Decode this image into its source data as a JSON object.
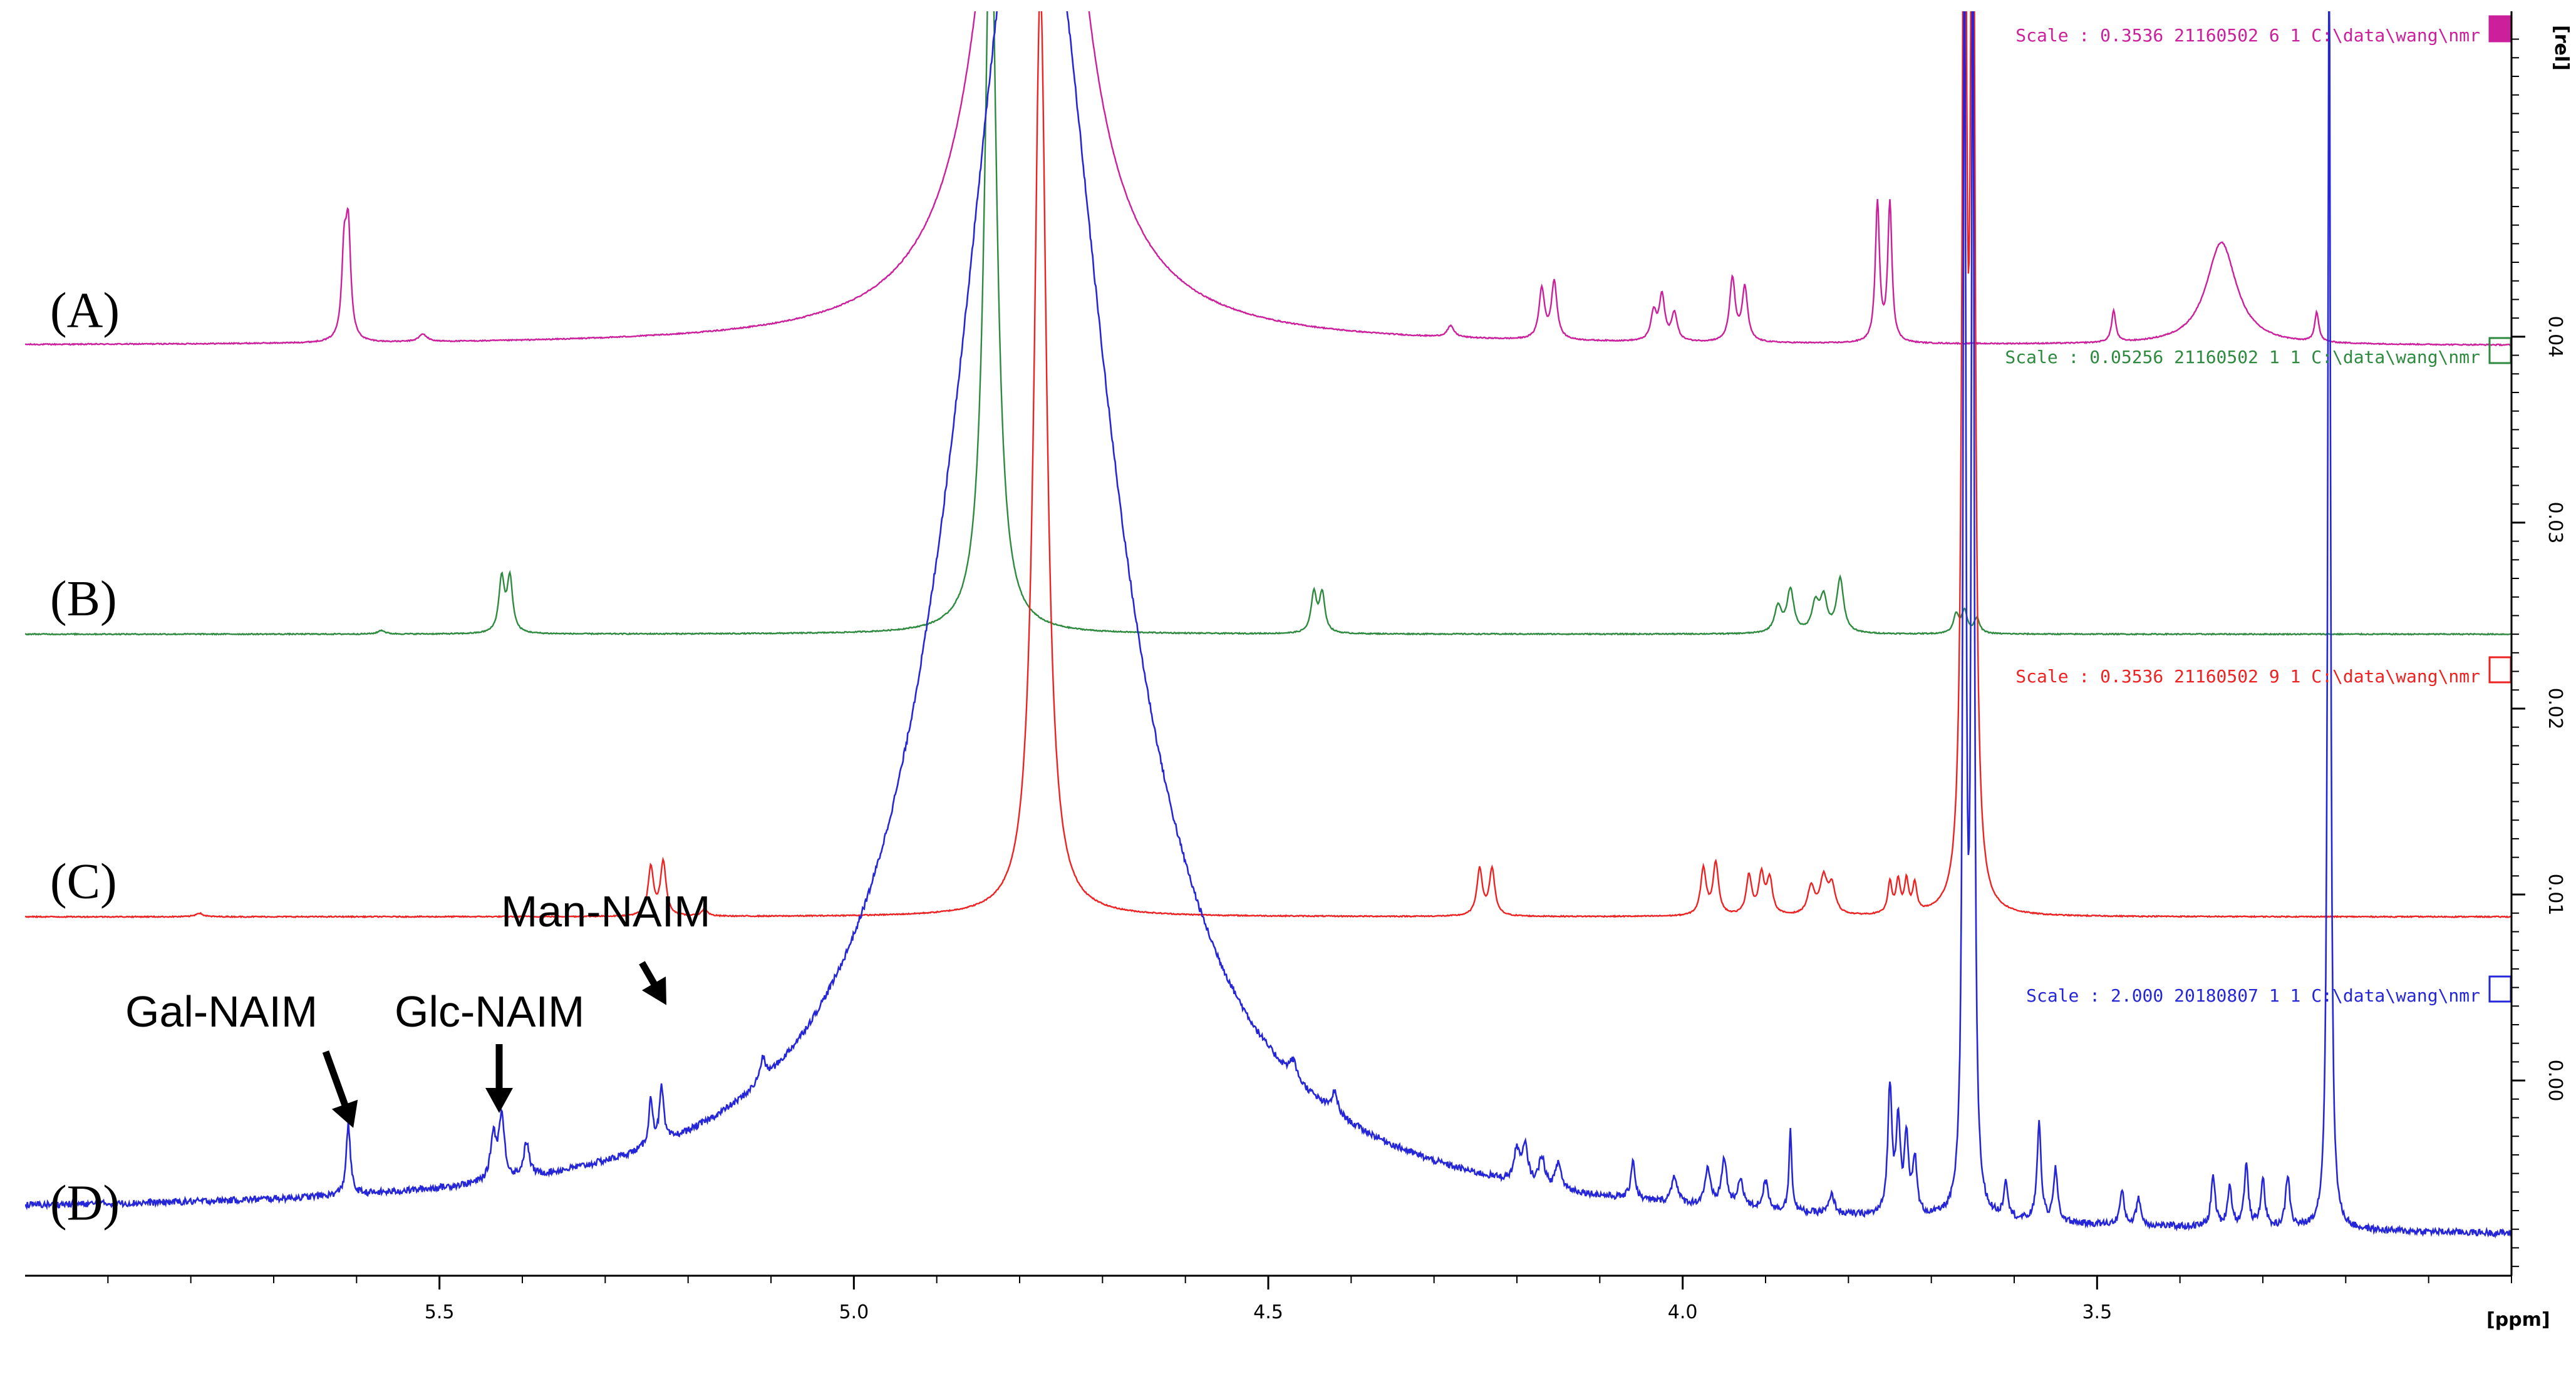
{
  "chart_data": {
    "type": "line",
    "title": "",
    "xlabel": "[ppm]",
    "ylabel": "[rel]",
    "xlim": [
      6.0,
      3.0
    ],
    "ylim": [
      -0.0105,
      0.0575
    ],
    "x_ticks": [
      5.5,
      5.0,
      4.5,
      4.0,
      3.5
    ],
    "x_tick_labels": [
      "5.5",
      "5.0",
      "4.5",
      "4.0",
      "3.5"
    ],
    "y_ticks": [
      0.0,
      0.01,
      0.02,
      0.03,
      0.04
    ],
    "y_tick_labels": [
      "0.00",
      "0.01",
      "0.02",
      "0.03",
      "0.04"
    ],
    "x_axis_reversed": true,
    "grid": false,
    "series": [
      {
        "name": "(A)",
        "color": "#cc1f9c",
        "baseline": 0.0395,
        "scale_text": "Scale : 0.3536   21160502  6  1  C:\\data\\wang\\nmr",
        "peaks": [
          {
            "ppm": 5.61,
            "height": 0.0057,
            "width": 0.0035
          },
          {
            "ppm": 5.615,
            "height": 0.0045,
            "width": 0.0035
          },
          {
            "ppm": 5.52,
            "height": 0.0004,
            "width": 0.006
          },
          {
            "ppm": 4.785,
            "height": 0.06,
            "width": 0.045
          },
          {
            "ppm": 4.28,
            "height": 0.0006,
            "width": 0.005
          },
          {
            "ppm": 4.17,
            "height": 0.0027,
            "width": 0.004
          },
          {
            "ppm": 4.155,
            "height": 0.0031,
            "width": 0.004
          },
          {
            "ppm": 4.035,
            "height": 0.0015,
            "width": 0.004
          },
          {
            "ppm": 4.025,
            "height": 0.0024,
            "width": 0.004
          },
          {
            "ppm": 4.01,
            "height": 0.0015,
            "width": 0.004
          },
          {
            "ppm": 3.94,
            "height": 0.0034,
            "width": 0.004
          },
          {
            "ppm": 3.925,
            "height": 0.0029,
            "width": 0.004
          },
          {
            "ppm": 3.765,
            "height": 0.0075,
            "width": 0.003
          },
          {
            "ppm": 3.75,
            "height": 0.0075,
            "width": 0.003
          },
          {
            "ppm": 3.48,
            "height": 0.0017,
            "width": 0.003
          },
          {
            "ppm": 3.35,
            "height": 0.0055,
            "width": 0.022
          },
          {
            "ppm": 3.235,
            "height": 0.0016,
            "width": 0.003
          }
        ]
      },
      {
        "name": "(B)",
        "color": "#2d8a3e",
        "baseline": 0.024,
        "scale_text": "Scale : 0.05256   21160502  1  1  C:\\data\\wang\\nmr",
        "peaks": [
          {
            "ppm": 5.57,
            "height": 0.0002,
            "width": 0.005
          },
          {
            "ppm": 5.425,
            "height": 0.0029,
            "width": 0.004
          },
          {
            "ppm": 5.415,
            "height": 0.0029,
            "width": 0.004
          },
          {
            "ppm": 4.835,
            "height": 0.04,
            "width": 0.009
          },
          {
            "ppm": 4.445,
            "height": 0.0021,
            "width": 0.004
          },
          {
            "ppm": 4.435,
            "height": 0.0021,
            "width": 0.004
          },
          {
            "ppm": 3.885,
            "height": 0.0014,
            "width": 0.005
          },
          {
            "ppm": 3.87,
            "height": 0.0023,
            "width": 0.005
          },
          {
            "ppm": 3.84,
            "height": 0.0015,
            "width": 0.005
          },
          {
            "ppm": 3.83,
            "height": 0.0018,
            "width": 0.005
          },
          {
            "ppm": 3.81,
            "height": 0.0029,
            "width": 0.005
          },
          {
            "ppm": 3.67,
            "height": 0.001,
            "width": 0.004
          },
          {
            "ppm": 3.66,
            "height": 0.0012,
            "width": 0.004
          },
          {
            "ppm": 3.645,
            "height": 0.0008,
            "width": 0.004
          }
        ]
      },
      {
        "name": "(C)",
        "color": "#ee2222",
        "baseline": 0.0088,
        "scale_text": "Scale : 0.3536   21160502  9  1  C:\\data\\wang\\nmr",
        "peaks": [
          {
            "ppm": 5.79,
            "height": 0.0002,
            "width": 0.005
          },
          {
            "ppm": 5.245,
            "height": 0.0026,
            "width": 0.004
          },
          {
            "ppm": 5.23,
            "height": 0.0029,
            "width": 0.004
          },
          {
            "ppm": 5.18,
            "height": 0.0004,
            "width": 0.004
          },
          {
            "ppm": 4.775,
            "height": 0.05,
            "width": 0.009
          },
          {
            "ppm": 4.245,
            "height": 0.0025,
            "width": 0.004
          },
          {
            "ppm": 4.23,
            "height": 0.0025,
            "width": 0.004
          },
          {
            "ppm": 3.975,
            "height": 0.0025,
            "width": 0.004
          },
          {
            "ppm": 3.96,
            "height": 0.0028,
            "width": 0.004
          },
          {
            "ppm": 3.92,
            "height": 0.0021,
            "width": 0.004
          },
          {
            "ppm": 3.905,
            "height": 0.0021,
            "width": 0.004
          },
          {
            "ppm": 3.895,
            "height": 0.0019,
            "width": 0.004
          },
          {
            "ppm": 3.845,
            "height": 0.0015,
            "width": 0.005
          },
          {
            "ppm": 3.83,
            "height": 0.0019,
            "width": 0.005
          },
          {
            "ppm": 3.82,
            "height": 0.0015,
            "width": 0.005
          },
          {
            "ppm": 3.75,
            "height": 0.0017,
            "width": 0.003
          },
          {
            "ppm": 3.74,
            "height": 0.0017,
            "width": 0.003
          },
          {
            "ppm": 3.73,
            "height": 0.0017,
            "width": 0.003
          },
          {
            "ppm": 3.72,
            "height": 0.0015,
            "width": 0.003
          },
          {
            "ppm": 3.66,
            "height": 0.065,
            "width": 0.003
          },
          {
            "ppm": 3.65,
            "height": 0.065,
            "width": 0.003
          }
        ]
      },
      {
        "name": "(D)",
        "color": "#2626d9",
        "baseline": -0.0085,
        "broad_peak": {
          "ppm": 4.785,
          "height": 0.075,
          "width": 0.11
        },
        "scale_text": "Scale : 2.000   20180807  1  1  C:\\data\\wang\\nmr",
        "peaks": [
          {
            "ppm": 5.61,
            "height": 0.0038,
            "width": 0.003
          },
          {
            "ppm": 5.435,
            "height": 0.0024,
            "width": 0.004
          },
          {
            "ppm": 5.425,
            "height": 0.0034,
            "width": 0.004
          },
          {
            "ppm": 5.395,
            "height": 0.0018,
            "width": 0.004
          },
          {
            "ppm": 5.245,
            "height": 0.0025,
            "width": 0.003
          },
          {
            "ppm": 5.232,
            "height": 0.0029,
            "width": 0.003
          },
          {
            "ppm": 5.11,
            "height": 0.0012,
            "width": 0.004
          },
          {
            "ppm": 4.47,
            "height": 0.0009,
            "width": 0.005
          },
          {
            "ppm": 4.42,
            "height": 0.0011,
            "width": 0.004
          },
          {
            "ppm": 4.2,
            "height": 0.0017,
            "width": 0.004
          },
          {
            "ppm": 4.19,
            "height": 0.0019,
            "width": 0.004
          },
          {
            "ppm": 4.17,
            "height": 0.0016,
            "width": 0.004
          },
          {
            "ppm": 4.15,
            "height": 0.0014,
            "width": 0.004
          },
          {
            "ppm": 4.06,
            "height": 0.0021,
            "width": 0.003
          },
          {
            "ppm": 4.01,
            "height": 0.0015,
            "width": 0.004
          },
          {
            "ppm": 3.97,
            "height": 0.0019,
            "width": 0.004
          },
          {
            "ppm": 3.95,
            "height": 0.0025,
            "width": 0.004
          },
          {
            "ppm": 3.93,
            "height": 0.0015,
            "width": 0.004
          },
          {
            "ppm": 3.9,
            "height": 0.0015,
            "width": 0.004
          },
          {
            "ppm": 3.87,
            "height": 0.0045,
            "width": 0.002
          },
          {
            "ppm": 3.82,
            "height": 0.001,
            "width": 0.004
          },
          {
            "ppm": 3.75,
            "height": 0.0068,
            "width": 0.003
          },
          {
            "ppm": 3.74,
            "height": 0.005,
            "width": 0.003
          },
          {
            "ppm": 3.73,
            "height": 0.004,
            "width": 0.003
          },
          {
            "ppm": 3.72,
            "height": 0.003,
            "width": 0.003
          },
          {
            "ppm": 3.66,
            "height": 0.07,
            "width": 0.002
          },
          {
            "ppm": 3.65,
            "height": 0.07,
            "width": 0.002
          },
          {
            "ppm": 3.61,
            "height": 0.002,
            "width": 0.003
          },
          {
            "ppm": 3.57,
            "height": 0.0052,
            "width": 0.003
          },
          {
            "ppm": 3.55,
            "height": 0.0028,
            "width": 0.003
          },
          {
            "ppm": 3.47,
            "height": 0.0018,
            "width": 0.003
          },
          {
            "ppm": 3.45,
            "height": 0.0015,
            "width": 0.003
          },
          {
            "ppm": 3.36,
            "height": 0.0027,
            "width": 0.003
          },
          {
            "ppm": 3.34,
            "height": 0.0022,
            "width": 0.003
          },
          {
            "ppm": 3.32,
            "height": 0.0033,
            "width": 0.003
          },
          {
            "ppm": 3.3,
            "height": 0.0026,
            "width": 0.003
          },
          {
            "ppm": 3.27,
            "height": 0.0028,
            "width": 0.003
          },
          {
            "ppm": 3.22,
            "height": 0.07,
            "width": 0.002
          }
        ]
      }
    ],
    "annotations": [
      {
        "text": "Gal-NAIM",
        "ppm": 5.61,
        "series": "(D)"
      },
      {
        "text": "Glc-NAIM",
        "ppm": 5.43,
        "series": "(D)"
      },
      {
        "text": "Man-NAIM",
        "ppm": 5.235,
        "series": "(D)"
      }
    ]
  }
}
